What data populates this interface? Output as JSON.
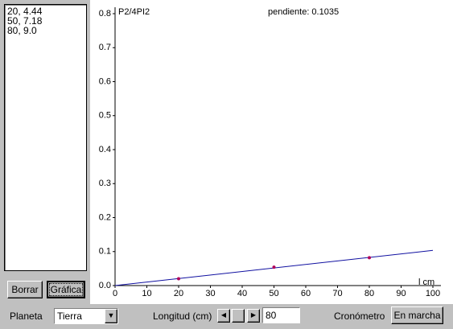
{
  "list": {
    "lines": [
      "20, 4.44",
      "50, 7.18",
      "80, 9.0"
    ]
  },
  "buttons": {
    "clear": "Borrar",
    "graph": "Gráfica"
  },
  "chart_data": {
    "type": "scatter",
    "y_label": "P2/4PI2",
    "annotation": "pendiente: 0.1035",
    "x_label": "l cm",
    "x": [
      20,
      50,
      80
    ],
    "values": [
      0.02,
      0.054,
      0.082
    ],
    "color": "#b0005a",
    "line": {
      "x": [
        0,
        100
      ],
      "values": [
        0,
        0.1035
      ],
      "color": "#1010a0"
    },
    "xlim": [
      0,
      100
    ],
    "ylim": [
      0,
      0.8
    ],
    "xticks": [
      0,
      10,
      20,
      30,
      40,
      50,
      60,
      70,
      80,
      90,
      100
    ],
    "yticks": [
      {
        "value": 0,
        "label": "0.0"
      },
      0.1,
      0.2,
      0.3,
      0.4,
      0.5,
      0.6,
      0.7,
      0.8
    ]
  },
  "controls": {
    "planet_label": "Planeta",
    "planet": "Tierra",
    "length_label": "Longitud (cm)",
    "length": "80",
    "timer_label": "Cronómetro",
    "start": "En marcha"
  }
}
